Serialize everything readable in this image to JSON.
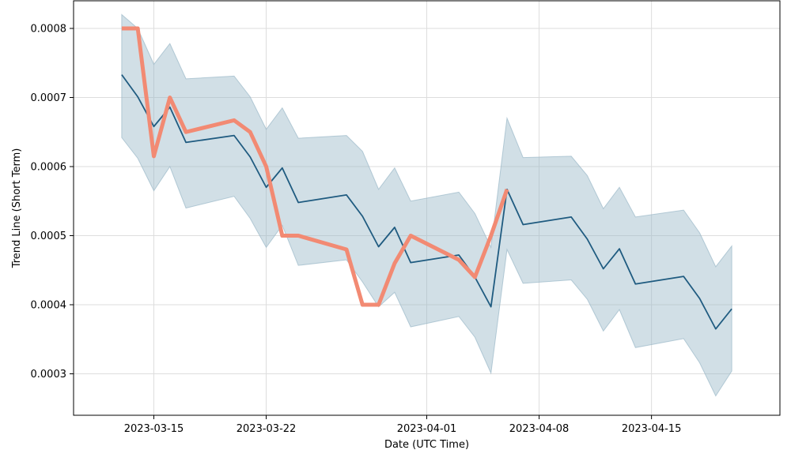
{
  "chart_data": {
    "type": "line",
    "xlabel": "Date (UTC Time)",
    "ylabel": "Trend Line (Short Term)",
    "grid": true,
    "xlim": [
      "2023-03-10",
      "2023-04-23"
    ],
    "ylim": [
      0.00024,
      0.00084
    ],
    "x_ticks": [
      "2023-03-15",
      "2023-03-22",
      "2023-04-01",
      "2023-04-08",
      "2023-04-15"
    ],
    "y_ticks": [
      0.0003,
      0.0004,
      0.0005,
      0.0006,
      0.0007,
      0.0008
    ],
    "y_tick_labels": [
      "0.0003",
      "0.0004",
      "0.0005",
      "0.0006",
      "0.0007",
      "0.0008"
    ],
    "colors": {
      "trend": "#1f5b80",
      "band": "#9ab8c7",
      "price": "#f28a73",
      "grid": "#dddddd",
      "axes": "#000000"
    },
    "series": [
      {
        "role": "trend",
        "points": [
          [
            "2023-03-13",
            0.000733
          ],
          [
            "2023-03-14",
            0.000701
          ],
          [
            "2023-03-15",
            0.000658
          ],
          [
            "2023-03-16",
            0.000686
          ],
          [
            "2023-03-17",
            0.000635
          ],
          [
            "2023-03-20",
            0.000645
          ],
          [
            "2023-03-21",
            0.000614
          ],
          [
            "2023-03-22",
            0.00057
          ],
          [
            "2023-03-23",
            0.000598
          ],
          [
            "2023-03-24",
            0.000548
          ],
          [
            "2023-03-27",
            0.000559
          ],
          [
            "2023-03-28",
            0.000528
          ],
          [
            "2023-03-29",
            0.000484
          ],
          [
            "2023-03-30",
            0.000512
          ],
          [
            "2023-03-31",
            0.000461
          ],
          [
            "2023-04-03",
            0.000472
          ],
          [
            "2023-04-04",
            0.00044
          ],
          [
            "2023-04-05",
            0.000397
          ],
          [
            "2023-04-06",
            0.000567
          ],
          [
            "2023-04-07",
            0.000516
          ],
          [
            "2023-04-10",
            0.000527
          ],
          [
            "2023-04-11",
            0.000495
          ],
          [
            "2023-04-12",
            0.000452
          ],
          [
            "2023-04-13",
            0.000481
          ],
          [
            "2023-04-14",
            0.00043
          ],
          [
            "2023-04-17",
            0.000441
          ],
          [
            "2023-04-18",
            0.000409
          ],
          [
            "2023-04-19",
            0.000365
          ],
          [
            "2023-04-20",
            0.000394
          ]
        ]
      },
      {
        "role": "band",
        "upper": [
          [
            "2023-03-13",
            0.00082
          ],
          [
            "2023-03-14",
            0.0008
          ],
          [
            "2023-03-15",
            0.000748
          ],
          [
            "2023-03-16",
            0.000778
          ],
          [
            "2023-03-17",
            0.000727
          ],
          [
            "2023-03-20",
            0.000731
          ],
          [
            "2023-03-21",
            0.000701
          ],
          [
            "2023-03-22",
            0.000654
          ],
          [
            "2023-03-23",
            0.000685
          ],
          [
            "2023-03-24",
            0.000641
          ],
          [
            "2023-03-27",
            0.000645
          ],
          [
            "2023-03-28",
            0.000622
          ],
          [
            "2023-03-29",
            0.000567
          ],
          [
            "2023-03-30",
            0.000598
          ],
          [
            "2023-03-31",
            0.00055
          ],
          [
            "2023-04-03",
            0.000563
          ],
          [
            "2023-04-04",
            0.000532
          ],
          [
            "2023-04-05",
            0.000483
          ],
          [
            "2023-04-06",
            0.00067
          ],
          [
            "2023-04-07",
            0.000613
          ],
          [
            "2023-04-10",
            0.000615
          ],
          [
            "2023-04-11",
            0.000587
          ],
          [
            "2023-04-12",
            0.000539
          ],
          [
            "2023-04-13",
            0.00057
          ],
          [
            "2023-04-14",
            0.000527
          ],
          [
            "2023-04-17",
            0.000537
          ],
          [
            "2023-04-18",
            0.000504
          ],
          [
            "2023-04-19",
            0.000455
          ],
          [
            "2023-04-20",
            0.000485
          ]
        ],
        "lower": [
          [
            "2023-03-13",
            0.000642
          ],
          [
            "2023-03-14",
            0.000612
          ],
          [
            "2023-03-15",
            0.000565
          ],
          [
            "2023-03-16",
            0.0006
          ],
          [
            "2023-03-17",
            0.00054
          ],
          [
            "2023-03-20",
            0.000557
          ],
          [
            "2023-03-21",
            0.000525
          ],
          [
            "2023-03-22",
            0.000483
          ],
          [
            "2023-03-23",
            0.000515
          ],
          [
            "2023-03-24",
            0.000457
          ],
          [
            "2023-03-27",
            0.000465
          ],
          [
            "2023-03-28",
            0.000433
          ],
          [
            "2023-03-29",
            0.000397
          ],
          [
            "2023-03-30",
            0.000418
          ],
          [
            "2023-03-31",
            0.000368
          ],
          [
            "2023-04-03",
            0.000383
          ],
          [
            "2023-04-04",
            0.000353
          ],
          [
            "2023-04-05",
            0.000301
          ],
          [
            "2023-04-06",
            0.00048
          ],
          [
            "2023-04-07",
            0.000431
          ],
          [
            "2023-04-10",
            0.000436
          ],
          [
            "2023-04-11",
            0.000408
          ],
          [
            "2023-04-12",
            0.000362
          ],
          [
            "2023-04-13",
            0.000393
          ],
          [
            "2023-04-14",
            0.000338
          ],
          [
            "2023-04-17",
            0.000351
          ],
          [
            "2023-04-18",
            0.000316
          ],
          [
            "2023-04-19",
            0.000268
          ],
          [
            "2023-04-20",
            0.000304
          ]
        ]
      },
      {
        "role": "price",
        "points": [
          [
            "2023-03-13",
            0.0008
          ],
          [
            "2023-03-14",
            0.0008
          ],
          [
            "2023-03-15",
            0.000615
          ],
          [
            "2023-03-16",
            0.0007
          ],
          [
            "2023-03-17",
            0.00065
          ],
          [
            "2023-03-20",
            0.000667
          ],
          [
            "2023-03-21",
            0.00065
          ],
          [
            "2023-03-22",
            0.0006
          ],
          [
            "2023-03-23",
            0.0005
          ],
          [
            "2023-03-24",
            0.0005
          ],
          [
            "2023-03-27",
            0.00048
          ],
          [
            "2023-03-28",
            0.0004
          ],
          [
            "2023-03-29",
            0.0004
          ],
          [
            "2023-03-30",
            0.00046
          ],
          [
            "2023-03-31",
            0.0005
          ],
          [
            "2023-04-03",
            0.000465
          ],
          [
            "2023-04-04",
            0.00044
          ],
          [
            "2023-04-05",
            0.0005
          ],
          [
            "2023-04-06",
            0.000567
          ]
        ]
      }
    ]
  }
}
